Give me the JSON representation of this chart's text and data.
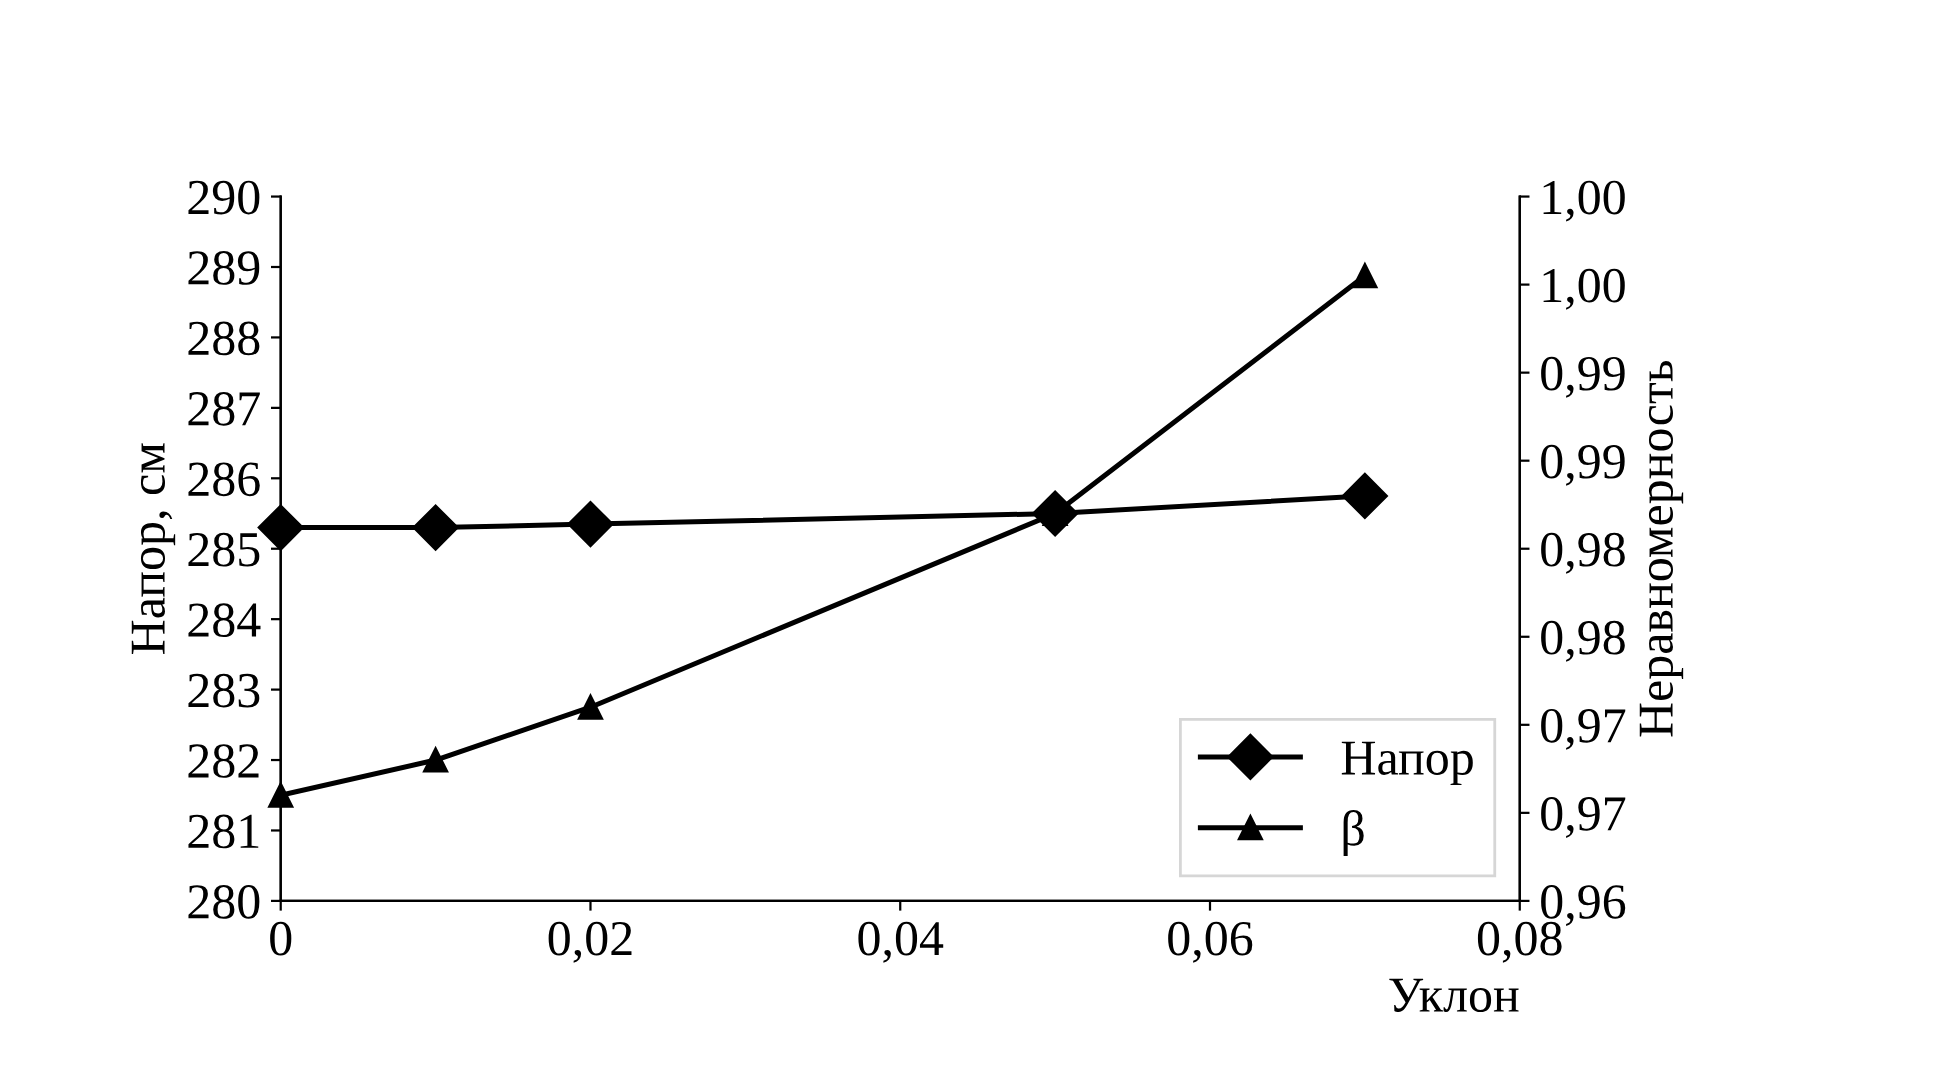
{
  "chart_data": {
    "type": "line",
    "xlabel": "Уклон",
    "ylabel": "Напор, см",
    "y2label": "Неравномерность",
    "x": [
      0,
      0.01,
      0.02,
      0.05,
      0.07
    ],
    "series": [
      {
        "name": "Напор",
        "color": "#000000",
        "marker": "diamond",
        "values": [
          285.3,
          285.3,
          285.35,
          285.5,
          285.75
        ]
      },
      {
        "name": "β",
        "color": "#000000",
        "marker": "triangle",
        "axis": "y2",
        "values": [
          0.966,
          0.968,
          0.971,
          0.982,
          0.9955
        ]
      }
    ],
    "xlim": [
      0,
      0.08
    ],
    "xticks": [
      0,
      {
        "value": 0.02,
        "label": "0,02"
      },
      {
        "value": 0.04,
        "label": "0,04"
      },
      {
        "value": 0.06,
        "label": "0,06"
      },
      {
        "value": 0.08,
        "label": "0,08"
      }
    ],
    "ylim": [
      280,
      290
    ],
    "yticks": [
      280,
      281,
      282,
      283,
      284,
      285,
      286,
      287,
      288,
      289,
      290
    ],
    "y2lim": [
      0.96,
      1.0
    ],
    "y2ticks": [
      {
        "value": 0.96,
        "label": "0,96"
      },
      {
        "value": 0.965,
        "label": "0,97"
      },
      {
        "value": 0.97,
        "label": "0,97"
      },
      {
        "value": 0.975,
        "label": "0,98"
      },
      {
        "value": 0.98,
        "label": "0,98"
      },
      {
        "value": 0.985,
        "label": "0,99"
      },
      {
        "value": 0.99,
        "label": "0,99"
      },
      {
        "value": 0.995,
        "label": "1,00"
      },
      {
        "value": 1.0,
        "label": "1,00"
      }
    ],
    "legend": "lower right",
    "grid": false,
    "line_style": "solid"
  }
}
